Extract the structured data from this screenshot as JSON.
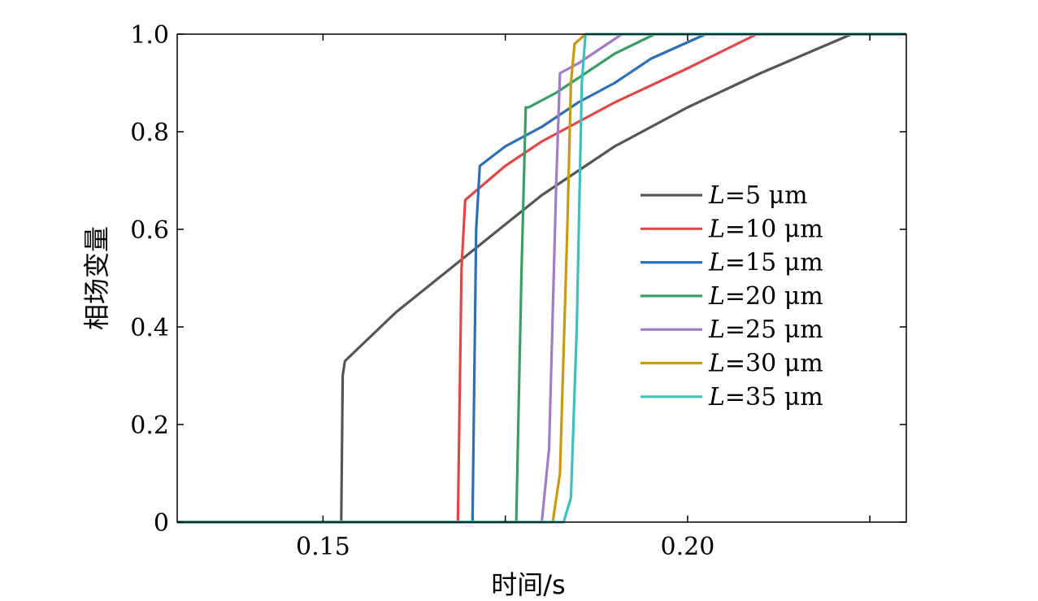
{
  "chart_data": {
    "type": "line",
    "title": "",
    "xlabel": "时间/s",
    "ylabel": "相场变量",
    "xlim": [
      0.13,
      0.23
    ],
    "ylim": [
      0,
      1.0
    ],
    "xticks": [
      0.15,
      0.175,
      0.2,
      0.225
    ],
    "xtick_labels": [
      "0.15",
      "",
      "0.20",
      ""
    ],
    "yticks": [
      0,
      0.2,
      0.4,
      0.6,
      0.8,
      1.0
    ],
    "ytick_labels": [
      "0",
      "0.2",
      "0.4",
      "0.6",
      "0.8",
      "1.0"
    ],
    "legend_position": "center-right",
    "legend_unit": "μm",
    "series": [
      {
        "name": "L=5 μm",
        "label_var": "L",
        "label_rest": "=5 μm",
        "color": "#555555",
        "x": [
          0.13,
          0.1525,
          0.1527,
          0.153,
          0.16,
          0.17,
          0.18,
          0.19,
          0.2,
          0.21,
          0.2225,
          0.23
        ],
        "y": [
          0,
          0,
          0.3,
          0.33,
          0.43,
          0.55,
          0.67,
          0.77,
          0.85,
          0.92,
          1.0,
          1.0
        ]
      },
      {
        "name": "L=10 μm",
        "label_var": "L",
        "label_rest": "=10 μm",
        "color": "#e04848",
        "x": [
          0.13,
          0.1685,
          0.169,
          0.1695,
          0.175,
          0.18,
          0.185,
          0.19,
          0.2,
          0.2095,
          0.23
        ],
        "y": [
          0,
          0,
          0.52,
          0.66,
          0.73,
          0.78,
          0.82,
          0.86,
          0.93,
          1.0,
          1.0
        ]
      },
      {
        "name": "L=15 μm",
        "label_var": "L",
        "label_rest": "=15 μm",
        "color": "#2e6fb6",
        "x": [
          0.13,
          0.1705,
          0.171,
          0.1715,
          0.175,
          0.18,
          0.185,
          0.19,
          0.195,
          0.2025,
          0.23
        ],
        "y": [
          0,
          0,
          0.6,
          0.73,
          0.77,
          0.81,
          0.86,
          0.9,
          0.95,
          1.0,
          1.0
        ]
      },
      {
        "name": "L=20 μm",
        "label_var": "L",
        "label_rest": "=20 μm",
        "color": "#3a9e66",
        "x": [
          0.13,
          0.1765,
          0.1772,
          0.1778,
          0.1782,
          0.182,
          0.186,
          0.19,
          0.1955,
          0.23
        ],
        "y": [
          0,
          0,
          0.5,
          0.85,
          0.85,
          0.88,
          0.92,
          0.96,
          1.0,
          1.0
        ]
      },
      {
        "name": "L=25 μm",
        "label_var": "L",
        "label_rest": "=25 μm",
        "color": "#a07cc4",
        "x": [
          0.13,
          0.18,
          0.181,
          0.182,
          0.1825,
          0.185,
          0.188,
          0.191,
          0.23
        ],
        "y": [
          0,
          0,
          0.15,
          0.7,
          0.92,
          0.94,
          0.97,
          1.0,
          1.0
        ]
      },
      {
        "name": "L=30 μm",
        "label_var": "L",
        "label_rest": "=30 μm",
        "color": "#c99a10",
        "x": [
          0.13,
          0.1815,
          0.1825,
          0.1835,
          0.184,
          0.1845,
          0.186,
          0.23
        ],
        "y": [
          0,
          0,
          0.1,
          0.6,
          0.9,
          0.98,
          1.0,
          1.0
        ]
      },
      {
        "name": "L=35 μm",
        "label_var": "L",
        "label_rest": "=35 μm",
        "color": "#3cc0c0",
        "x": [
          0.13,
          0.183,
          0.184,
          0.1848,
          0.1855,
          0.186,
          0.23
        ],
        "y": [
          0,
          0,
          0.05,
          0.4,
          0.9,
          1.0,
          1.0
        ]
      }
    ]
  }
}
